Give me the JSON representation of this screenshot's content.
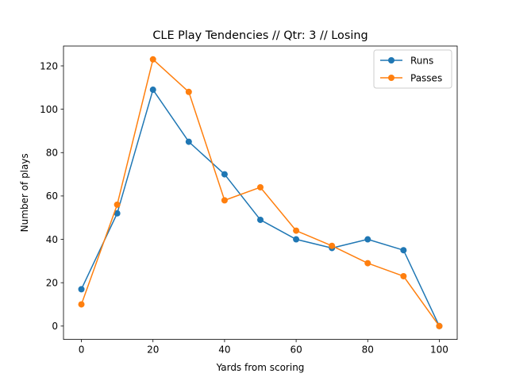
{
  "chart_data": {
    "type": "line",
    "title": "CLE Play Tendencies // Qtr: 3 // Losing",
    "xlabel": "Yards from scoring",
    "ylabel": "Number of plays",
    "xlim": [
      -5,
      105
    ],
    "ylim": [
      -6.15,
      129.15
    ],
    "xticks": [
      0,
      20,
      40,
      60,
      80,
      100
    ],
    "yticks": [
      0,
      20,
      40,
      60,
      80,
      100,
      120
    ],
    "x": [
      0,
      10,
      20,
      30,
      40,
      50,
      60,
      70,
      80,
      90,
      100
    ],
    "series": [
      {
        "name": "Runs",
        "color": "#1f77b4",
        "values": [
          17,
          52,
          109,
          85,
          70,
          49,
          40,
          36,
          40,
          35,
          0
        ]
      },
      {
        "name": "Passes",
        "color": "#ff7f0e",
        "values": [
          10,
          56,
          123,
          108,
          58,
          64,
          44,
          37,
          29,
          23,
          0
        ]
      }
    ],
    "legend": "top-right",
    "grid": false,
    "markers": "circle"
  }
}
